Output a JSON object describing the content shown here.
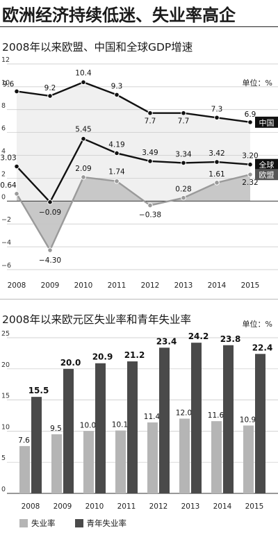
{
  "headline": "欧洲经济持续低迷、失业率高企",
  "chart_data": [
    {
      "type": "line",
      "title": "2008年以来欧盟、中国和全球GDP增速",
      "unit": "单位：%",
      "x": [
        "2008",
        "2009",
        "2010",
        "2011",
        "2012",
        "2013",
        "2014",
        "2015"
      ],
      "yticks": [
        "12",
        "10",
        "8",
        "6",
        "4",
        "2",
        "0",
        "−2",
        "−4",
        "−6"
      ],
      "ylim": [
        -6,
        12
      ],
      "series": [
        {
          "name": "中国",
          "values": [
            9.6,
            9.2,
            10.4,
            9.3,
            7.7,
            7.7,
            7.3,
            6.9
          ],
          "labels": [
            "9.6",
            "9.2",
            "10.4",
            "9.3",
            "7.7",
            "7.7",
            "7.3",
            "6.9"
          ],
          "color": "#111111"
        },
        {
          "name": "全球",
          "values": [
            3.03,
            -0.09,
            5.45,
            4.19,
            3.49,
            3.34,
            3.42,
            3.2
          ],
          "labels": [
            "3.03",
            "−0.09",
            "5.45",
            "4.19",
            "3.49",
            "3.34",
            "3.42",
            "3.20"
          ],
          "color": "#111111"
        },
        {
          "name": "欧盟",
          "values": [
            0.64,
            -4.3,
            2.09,
            1.74,
            -0.38,
            0.28,
            1.61,
            2.32
          ],
          "labels": [
            "0.64",
            "−4.30",
            "2.09",
            "1.74",
            "−0.38",
            "0.28",
            "1.61",
            "2.32"
          ],
          "color": "#9a9a9a"
        }
      ]
    },
    {
      "type": "bar",
      "title": "2008年以来欧元区失业率和青年失业率",
      "unit": "单位：%",
      "categories": [
        "2008",
        "2009",
        "2010",
        "2011",
        "2012",
        "2013",
        "2014",
        "2015"
      ],
      "yticks": [
        "25",
        "20",
        "15",
        "10",
        "5",
        "0"
      ],
      "ylim": [
        0,
        25
      ],
      "series": [
        {
          "name": "失业率",
          "values": [
            7.6,
            9.5,
            10.0,
            10.1,
            11.4,
            12.0,
            11.6,
            10.9
          ],
          "labels": [
            "7.6",
            "9.5",
            "10.0",
            "10.1",
            "11.4",
            "12.0",
            "11.6",
            "10.9"
          ],
          "color": "#b5b5b5"
        },
        {
          "name": "青年失业率",
          "values": [
            15.5,
            20.0,
            20.9,
            21.2,
            23.4,
            24.2,
            23.8,
            22.4
          ],
          "labels": [
            "15.5",
            "20.0",
            "20.9",
            "21.2",
            "23.4",
            "24.2",
            "23.8",
            "22.4"
          ],
          "color": "#4a4a4a"
        }
      ]
    }
  ]
}
